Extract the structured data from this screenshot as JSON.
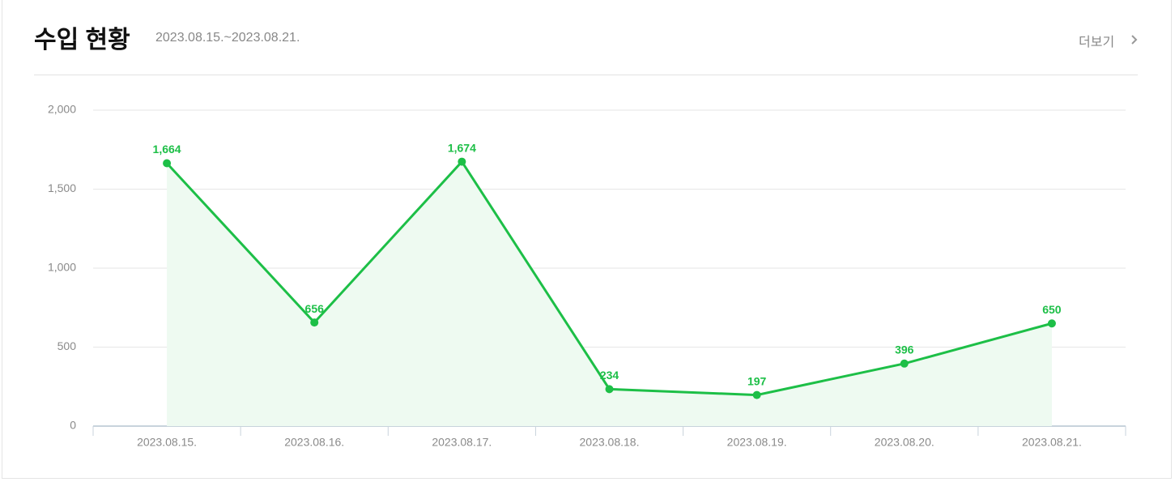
{
  "header": {
    "title": "수입 현황",
    "date_range": "2023.08.15.~2023.08.21.",
    "more": "더보기"
  },
  "chart_data": {
    "type": "line",
    "categories": [
      "2023.08.15.",
      "2023.08.16.",
      "2023.08.17.",
      "2023.08.18.",
      "2023.08.19.",
      "2023.08.20.",
      "2023.08.21."
    ],
    "series": [
      {
        "values": [
          1664,
          656,
          1674,
          234,
          197,
          396,
          650
        ],
        "value_labels": [
          "1,664",
          "656",
          "1,674",
          "234",
          "197",
          "396",
          "650"
        ],
        "color": "#1dbf47",
        "area": true,
        "area_color": "#eefaf1"
      }
    ],
    "ylim": [
      0,
      2000
    ],
    "yticks": [
      0,
      500,
      {
        "value": 1000,
        "label": "1,000"
      },
      {
        "value": 1500,
        "label": "1,500"
      },
      {
        "value": 2000,
        "label": "2,000"
      }
    ],
    "grid": true
  }
}
